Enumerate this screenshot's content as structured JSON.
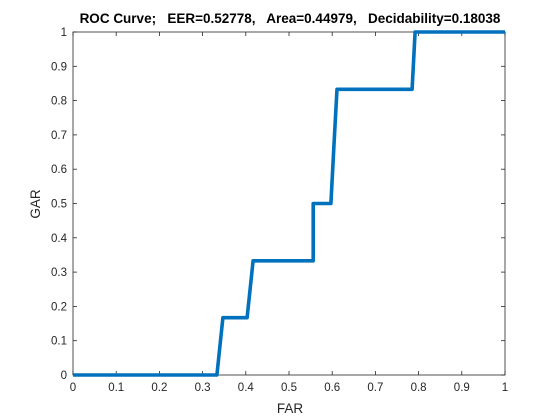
{
  "chart_data": {
    "type": "line",
    "title": "ROC Curve;   EER=0.52778,   Area=0.44979,   Decidability=0.18038",
    "xlabel": "FAR",
    "ylabel": "GAR",
    "xlim": [
      0,
      1
    ],
    "ylim": [
      0,
      1
    ],
    "xticks": [
      "0",
      "0.1",
      "0.2",
      "0.3",
      "0.4",
      "0.5",
      "0.6",
      "0.7",
      "0.8",
      "0.9",
      "1"
    ],
    "yticks": [
      "0",
      "0.1",
      "0.2",
      "0.3",
      "0.4",
      "0.5",
      "0.6",
      "0.7",
      "0.8",
      "0.9",
      "1"
    ],
    "grid": false,
    "series": [
      {
        "color": "#0072bd",
        "x": [
          0,
          0.333,
          0.347,
          0.347,
          0.403,
          0.417,
          0.417,
          0.556,
          0.556,
          0.597,
          0.604,
          0.611,
          0.611,
          0.785,
          0.792,
          0.792,
          1.0
        ],
        "y": [
          0,
          0,
          0.167,
          0.167,
          0.167,
          0.333,
          0.333,
          0.333,
          0.5,
          0.5,
          0.667,
          0.833,
          0.833,
          0.833,
          1.0,
          1.0,
          1.0
        ]
      }
    ]
  }
}
